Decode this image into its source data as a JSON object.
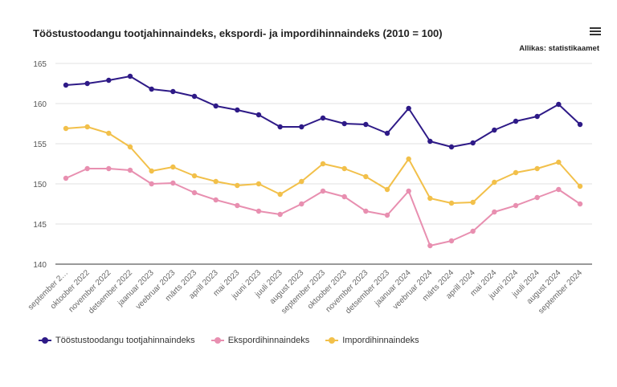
{
  "chart_data": {
    "type": "line",
    "title": "Tööstustoodangu tootjahinnaindeks, ekspordi- ja impordihinnaindeks (2010 = 100)",
    "source": "Allikas: statistikaamet",
    "ylim": [
      140,
      165
    ],
    "yticks": [
      140,
      145,
      150,
      155,
      160,
      165
    ],
    "grid": true,
    "legend_position": "bottom-left",
    "categories": [
      "september 2…",
      "oktoober 2022",
      "november 2022",
      "detsember 2022",
      "jaanuar 2023",
      "veebruar 2023",
      "märts 2023",
      "aprill 2023",
      "mai 2023",
      "juuni 2023",
      "juuli 2023",
      "august 2023",
      "september 2023",
      "oktoober 2023",
      "november 2023",
      "detsember 2023",
      "jaanuar 2024",
      "veebruar 2024",
      "märts 2024",
      "aprill 2024",
      "mai 2024",
      "juuni 2024",
      "juuli 2024",
      "august 2024",
      "september 2024"
    ],
    "series": [
      {
        "name": "Tööstustoodangu tootjahinnaindeks",
        "color": "#2e1a87",
        "values": [
          162.3,
          162.5,
          162.9,
          163.4,
          161.8,
          161.5,
          160.9,
          159.7,
          159.2,
          158.6,
          157.1,
          157.1,
          158.2,
          157.5,
          157.4,
          156.3,
          159.4,
          155.3,
          154.6,
          155.1,
          156.7,
          157.8,
          158.4,
          159.9,
          157.4
        ]
      },
      {
        "name": "Ekspordihinnaindeks",
        "color": "#e88fb0",
        "values": [
          150.7,
          151.9,
          151.9,
          151.7,
          150.0,
          150.1,
          148.9,
          148.0,
          147.3,
          146.6,
          146.2,
          147.5,
          149.1,
          148.4,
          146.6,
          146.1,
          149.1,
          142.3,
          142.9,
          144.1,
          146.5,
          147.3,
          148.3,
          149.3,
          147.5
        ]
      },
      {
        "name": "Impordihinnaindeks",
        "color": "#f2c04a",
        "values": [
          156.9,
          157.1,
          156.3,
          154.6,
          151.6,
          152.1,
          151.0,
          150.3,
          149.8,
          150.0,
          148.7,
          150.3,
          152.5,
          151.9,
          150.9,
          149.3,
          153.1,
          148.2,
          147.6,
          147.7,
          150.2,
          151.4,
          151.9,
          152.7,
          149.7
        ]
      }
    ]
  }
}
